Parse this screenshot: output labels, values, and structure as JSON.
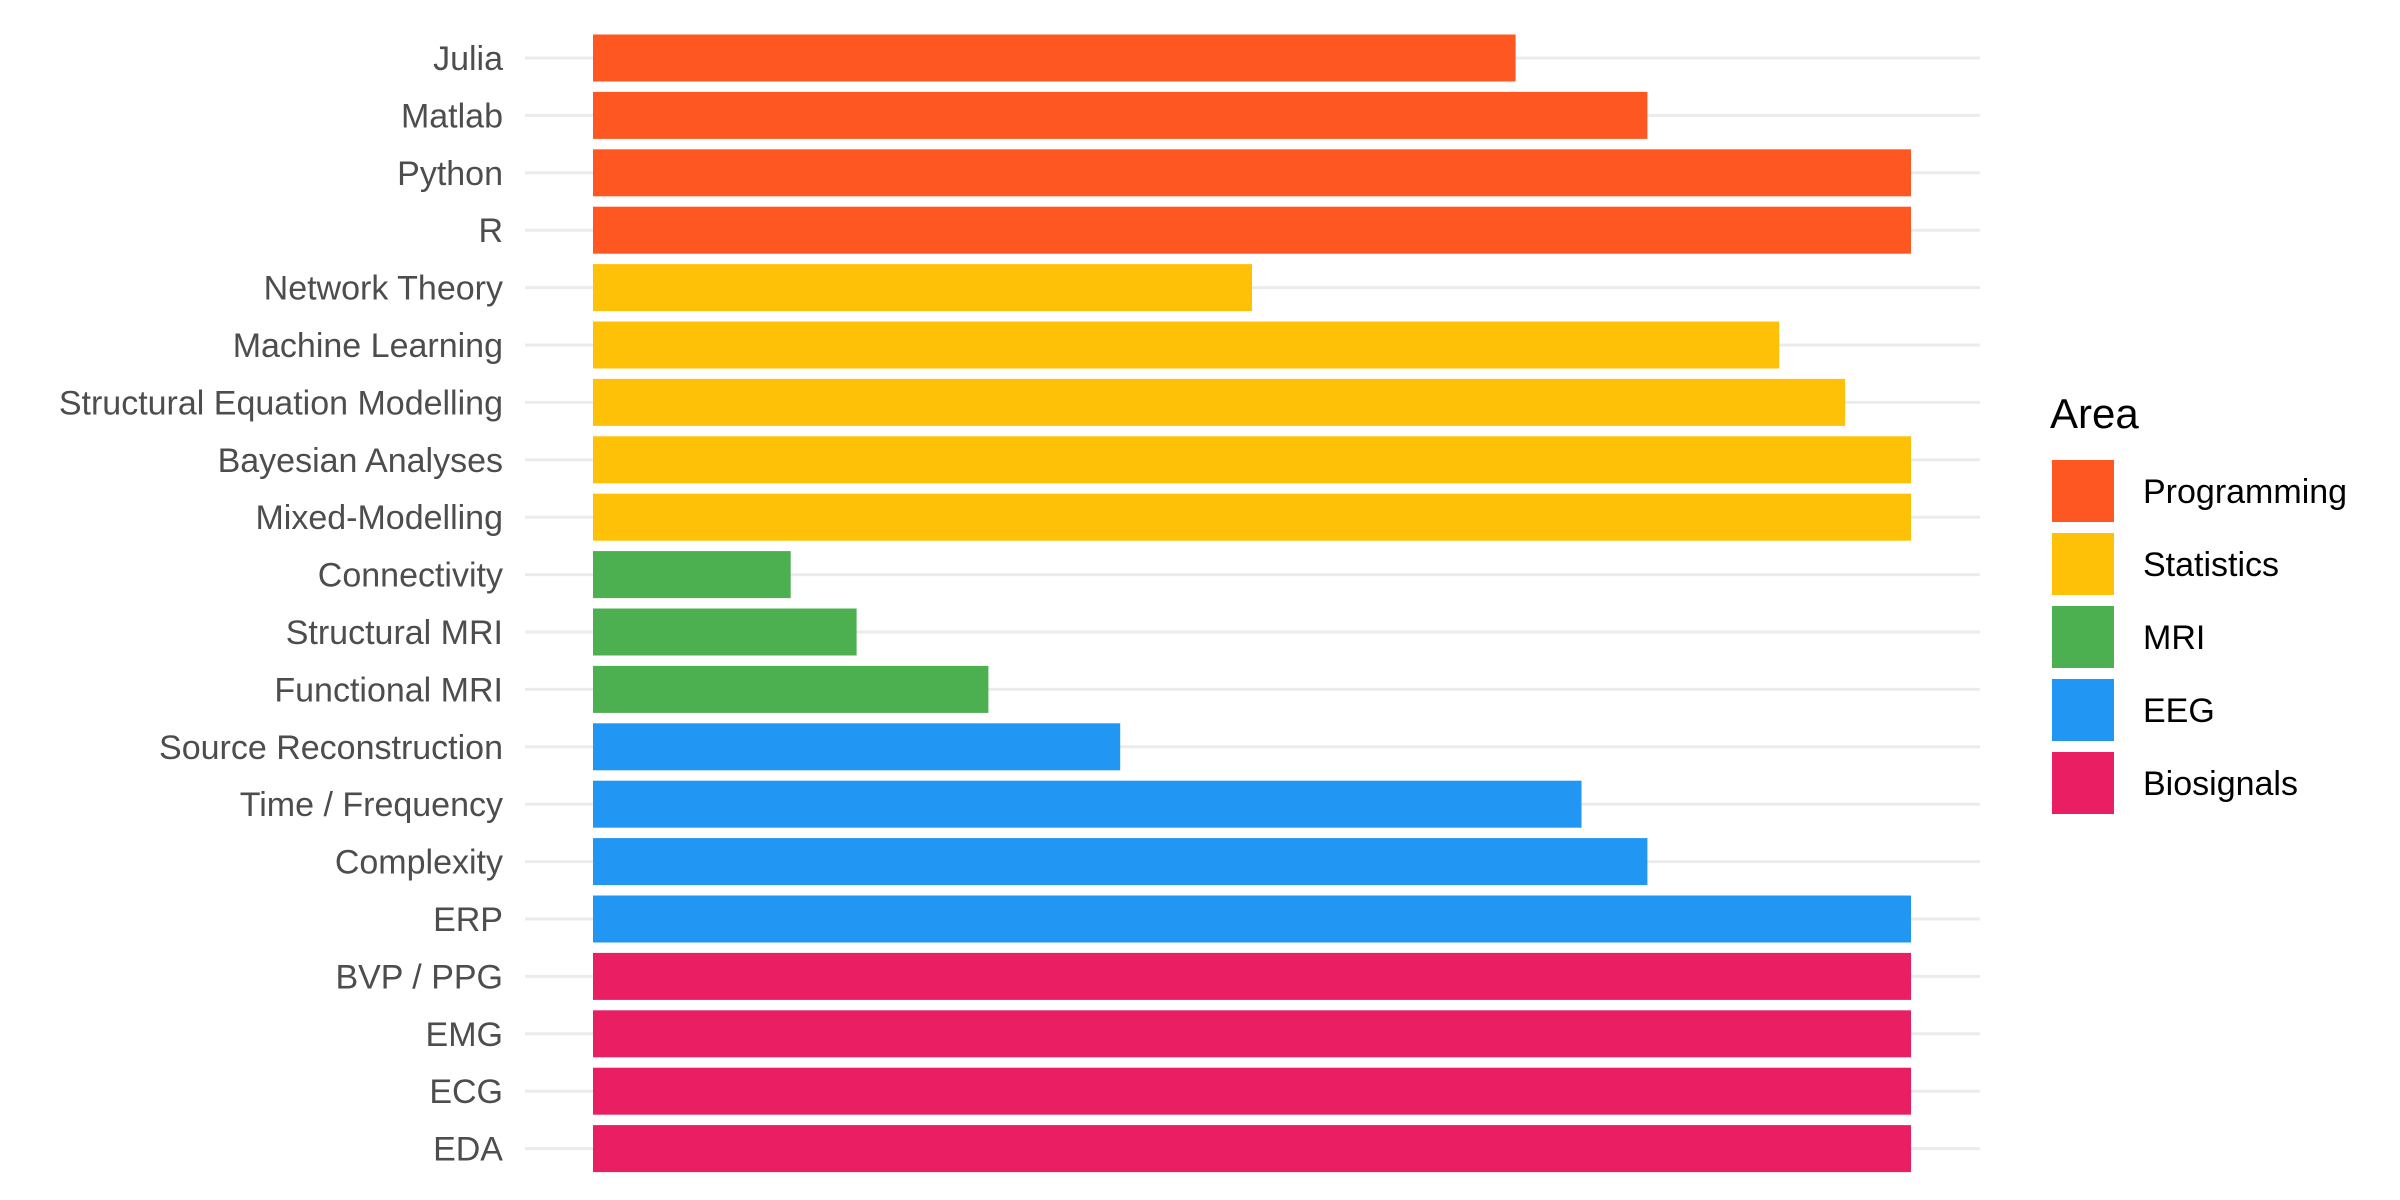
{
  "chart_data": {
    "type": "bar",
    "orientation": "horizontal",
    "categories": [
      "Julia",
      "Matlab",
      "Python",
      "R",
      "Network Theory",
      "Machine Learning",
      "Structural Equation Modelling",
      "Bayesian Analyses",
      "Mixed-Modelling",
      "Connectivity",
      "Structural MRI",
      "Functional MRI",
      "Source Reconstruction",
      "Time / Frequency",
      "Complexity",
      "ERP",
      "BVP / PPG",
      "EMG",
      "ECG",
      "EDA"
    ],
    "values": [
      7,
      8,
      10,
      10,
      5,
      9,
      9.5,
      10,
      10,
      1.5,
      2,
      3,
      4,
      7.5,
      8,
      10,
      10,
      10,
      10,
      10
    ],
    "groups": [
      "Programming",
      "Programming",
      "Programming",
      "Programming",
      "Statistics",
      "Statistics",
      "Statistics",
      "Statistics",
      "Statistics",
      "MRI",
      "MRI",
      "MRI",
      "EEG",
      "EEG",
      "EEG",
      "EEG",
      "Biosignals",
      "Biosignals",
      "Biosignals",
      "Biosignals"
    ],
    "xlim": [
      0,
      10.5
    ],
    "grid": true,
    "legend": {
      "title": "Area",
      "placement": "right",
      "entries": [
        {
          "name": "Programming",
          "color": "#FF5722"
        },
        {
          "name": "Statistics",
          "color": "#FFC107"
        },
        {
          "name": "MRI",
          "color": "#4CAF50"
        },
        {
          "name": "EEG",
          "color": "#2196F3"
        },
        {
          "name": "Biosignals",
          "color": "#E91E63"
        }
      ]
    }
  }
}
